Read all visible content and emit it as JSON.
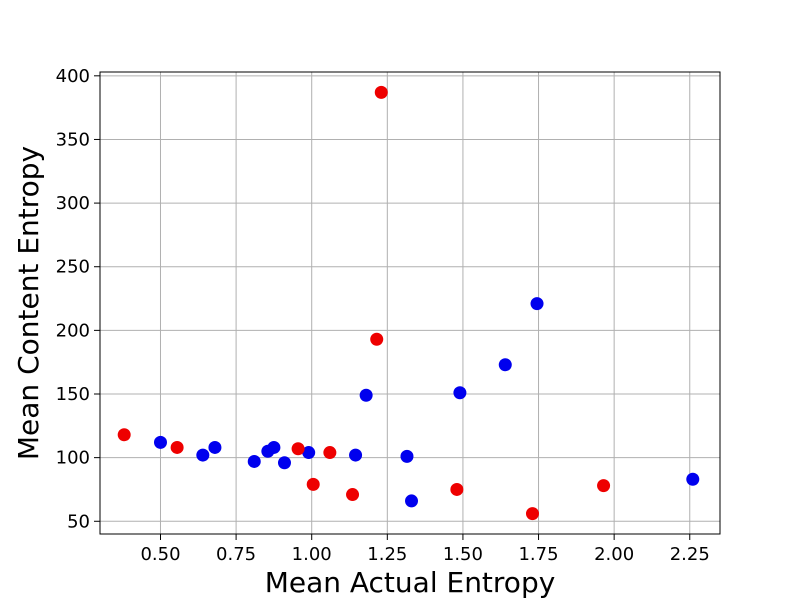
{
  "chart_data": {
    "type": "scatter",
    "title": "",
    "xlabel": "Mean Actual Entropy",
    "ylabel": "Mean Content Entropy",
    "xlim": [
      0.3,
      2.35
    ],
    "ylim": [
      40,
      403
    ],
    "xticks": [
      0.5,
      0.75,
      1.0,
      1.25,
      1.5,
      1.75,
      2.0,
      2.25
    ],
    "xtick_labels": [
      "0.50",
      "0.75",
      "1.00",
      "1.25",
      "1.50",
      "1.75",
      "2.00",
      "2.25"
    ],
    "yticks": [
      50,
      100,
      150,
      200,
      250,
      300,
      350,
      400
    ],
    "ytick_labels": [
      "50",
      "100",
      "150",
      "200",
      "250",
      "300",
      "350",
      "400"
    ],
    "grid": true,
    "series": [
      {
        "color": "#0000ee",
        "points": [
          {
            "x": 0.5,
            "y": 112
          },
          {
            "x": 0.64,
            "y": 102
          },
          {
            "x": 0.68,
            "y": 108
          },
          {
            "x": 0.81,
            "y": 97
          },
          {
            "x": 0.855,
            "y": 105
          },
          {
            "x": 0.875,
            "y": 108
          },
          {
            "x": 0.91,
            "y": 96
          },
          {
            "x": 0.99,
            "y": 104
          },
          {
            "x": 1.145,
            "y": 102
          },
          {
            "x": 1.18,
            "y": 149
          },
          {
            "x": 1.315,
            "y": 101
          },
          {
            "x": 1.33,
            "y": 66
          },
          {
            "x": 1.49,
            "y": 151
          },
          {
            "x": 1.64,
            "y": 173
          },
          {
            "x": 1.745,
            "y": 221
          },
          {
            "x": 2.26,
            "y": 83
          }
        ]
      },
      {
        "color": "#ee0000",
        "points": [
          {
            "x": 0.38,
            "y": 118
          },
          {
            "x": 0.555,
            "y": 108
          },
          {
            "x": 0.955,
            "y": 107
          },
          {
            "x": 1.005,
            "y": 79
          },
          {
            "x": 1.06,
            "y": 104
          },
          {
            "x": 1.135,
            "y": 71
          },
          {
            "x": 1.215,
            "y": 193
          },
          {
            "x": 1.23,
            "y": 387
          },
          {
            "x": 1.48,
            "y": 75
          },
          {
            "x": 1.73,
            "y": 56
          },
          {
            "x": 1.965,
            "y": 78
          }
        ]
      }
    ]
  }
}
